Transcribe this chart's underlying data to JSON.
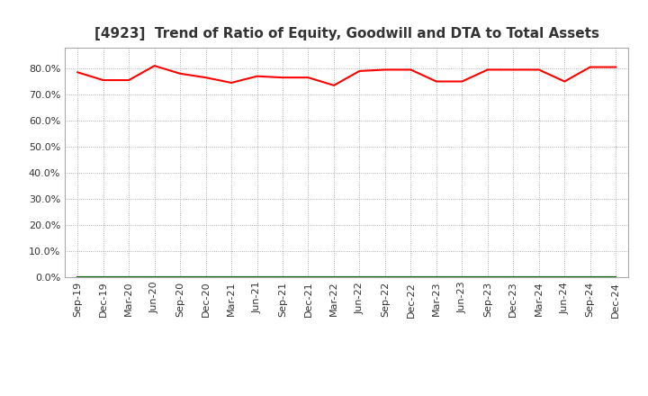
{
  "title": "[4923]  Trend of Ratio of Equity, Goodwill and DTA to Total Assets",
  "x_labels": [
    "Sep-19",
    "Dec-19",
    "Mar-20",
    "Jun-20",
    "Sep-20",
    "Dec-20",
    "Mar-21",
    "Jun-21",
    "Sep-21",
    "Dec-21",
    "Mar-22",
    "Jun-22",
    "Sep-22",
    "Dec-22",
    "Mar-23",
    "Jun-23",
    "Sep-23",
    "Dec-23",
    "Mar-24",
    "Jun-24",
    "Sep-24",
    "Dec-24"
  ],
  "equity": [
    78.5,
    75.5,
    75.5,
    81.0,
    78.0,
    76.5,
    74.5,
    77.0,
    76.5,
    76.5,
    73.5,
    79.0,
    79.5,
    79.5,
    75.0,
    75.0,
    79.5,
    79.5,
    79.5,
    75.0,
    80.5,
    80.5
  ],
  "goodwill": [
    0.0,
    0.0,
    0.0,
    0.0,
    0.0,
    0.0,
    0.0,
    0.0,
    0.0,
    0.0,
    0.0,
    0.0,
    0.0,
    0.0,
    0.0,
    0.0,
    0.0,
    0.0,
    0.0,
    0.0,
    0.0,
    0.0
  ],
  "dta": [
    0.0,
    0.0,
    0.0,
    0.0,
    0.0,
    0.0,
    0.0,
    0.0,
    0.0,
    0.0,
    0.0,
    0.0,
    0.0,
    0.0,
    0.0,
    0.0,
    0.0,
    0.0,
    0.0,
    0.0,
    0.0,
    0.0
  ],
  "equity_color": "#ff0000",
  "goodwill_color": "#0000cc",
  "dta_color": "#006600",
  "ylim": [
    0,
    88
  ],
  "yticks": [
    0,
    10,
    20,
    30,
    40,
    50,
    60,
    70,
    80
  ],
  "background_color": "#ffffff",
  "grid_color": "#999999",
  "title_fontsize": 11,
  "title_color": "#333333",
  "tick_fontsize": 8,
  "legend_fontsize": 9
}
